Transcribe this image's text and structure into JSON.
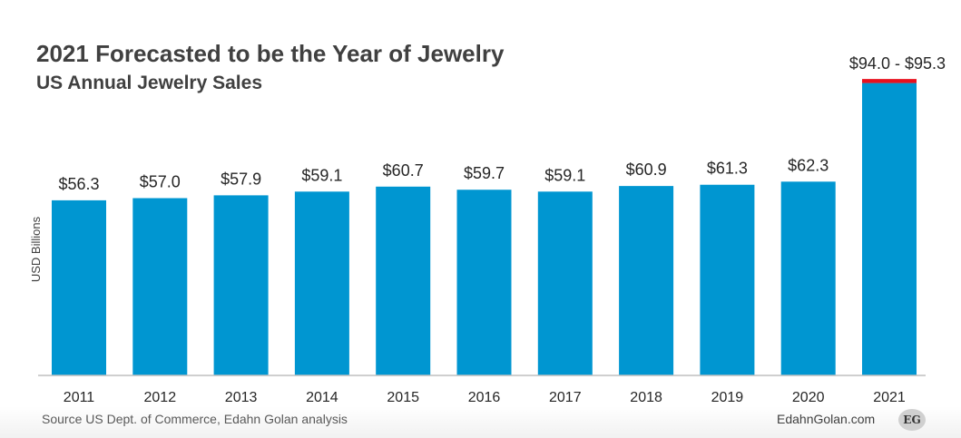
{
  "header": {
    "title": "2021 Forecasted to be the Year of Jewelry",
    "subtitle": "US Annual Jewelry Sales"
  },
  "footer": {
    "source": "Source US Dept. of Commerce, Edahn Golan analysis",
    "brand": "EdahnGolan.com",
    "logo_text": "EG"
  },
  "colors": {
    "bar": "#0096d1",
    "range_marker": "#e8101e",
    "text": "#404040"
  },
  "chart_data": {
    "type": "bar",
    "title": "2021 Forecasted to be the Year of Jewelry",
    "subtitle": "US Annual Jewelry Sales",
    "xlabel": "",
    "ylabel": "USD Billions",
    "categories": [
      "2011",
      "2012",
      "2013",
      "2014",
      "2015",
      "2016",
      "2017",
      "2018",
      "2019",
      "2020",
      "2021"
    ],
    "values": [
      56.3,
      57.0,
      57.9,
      59.1,
      60.7,
      59.7,
      59.1,
      60.9,
      61.3,
      62.3,
      94.0
    ],
    "labels": [
      "$56.3",
      "$57.0",
      "$57.9",
      "$59.1",
      "$60.7",
      "$59.7",
      "$59.1",
      "$60.9",
      "$61.3",
      "$62.3",
      "$94.0 - $95.3"
    ],
    "forecast_range": {
      "category": "2021",
      "low": 94.0,
      "high": 95.3
    },
    "ylim": [
      0,
      100
    ],
    "grid": false,
    "legend": "none"
  }
}
